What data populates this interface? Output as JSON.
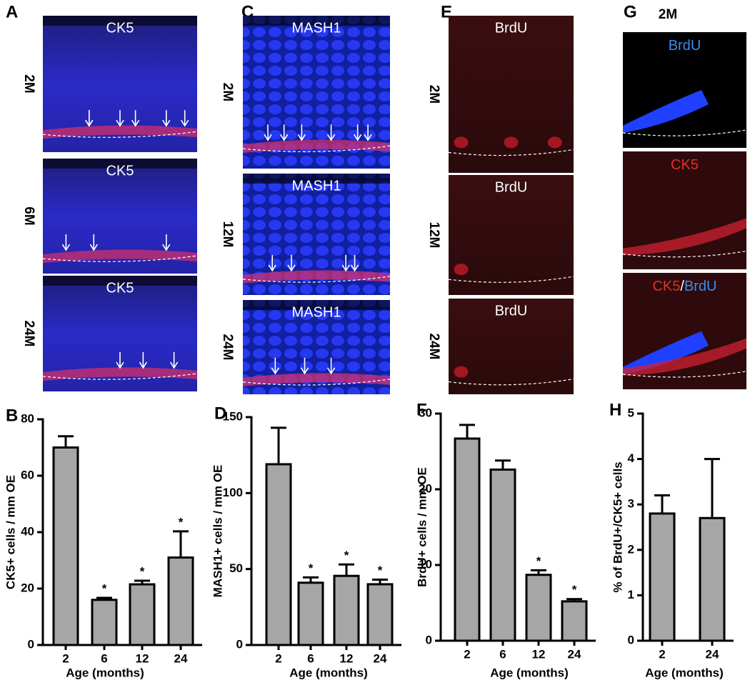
{
  "image_panels": [
    {
      "letter": "A",
      "stain": "CK5",
      "ages": [
        "2M",
        "6M",
        "24M"
      ]
    },
    {
      "letter": "C",
      "stain": "MASH1",
      "ages": [
        "2M",
        "12M",
        "24M"
      ]
    },
    {
      "letter": "E",
      "stain": "BrdU",
      "ages": [
        "2M",
        "12M",
        "24M"
      ]
    },
    {
      "letter": "G",
      "age": "2M",
      "labels": [
        [
          "BrdU"
        ],
        [
          "CK5"
        ],
        [
          "CK5",
          "/",
          "BrdU"
        ]
      ]
    }
  ],
  "chart_data": [
    {
      "type": "bar",
      "panel": "B",
      "x_label": "Age (months)",
      "y_label": "CK5+ cells / mm OE",
      "categories": [
        "2",
        "6",
        "12",
        "24"
      ],
      "values": [
        70,
        16,
        21.5,
        31
      ],
      "errors": [
        4,
        0.7,
        1.3,
        9.3
      ],
      "markers": [
        null,
        "*",
        "*",
        "*"
      ],
      "color": "#a6a6a6",
      "ylim": [
        0,
        80
      ],
      "yticks": [
        0,
        20,
        40,
        60,
        80
      ]
    },
    {
      "type": "bar",
      "panel": "D",
      "x_label": "Age (months)",
      "y_label": "MASH1+ cells / mm OE",
      "categories": [
        "2",
        "6",
        "12",
        "24"
      ],
      "values": [
        119,
        41,
        45.5,
        40
      ],
      "errors": [
        24,
        3.5,
        7.5,
        3
      ],
      "markers": [
        null,
        "*",
        "*",
        "*"
      ],
      "color": "#a6a6a6",
      "ylim": [
        0,
        150
      ],
      "yticks": [
        0,
        50,
        100,
        150
      ]
    },
    {
      "type": "bar",
      "panel": "F",
      "x_label": "Age (months)",
      "y_label": "BrdU+ cells / mm OE",
      "categories": [
        "2",
        "6",
        "12",
        "24"
      ],
      "values": [
        26.7,
        22.6,
        8.7,
        5.2
      ],
      "errors": [
        1.8,
        1.2,
        0.6,
        0.3
      ],
      "markers": [
        null,
        null,
        "*",
        "*"
      ],
      "color": "#a6a6a6",
      "ylim": [
        0,
        30
      ],
      "yticks": [
        0,
        10,
        20,
        30
      ]
    },
    {
      "type": "bar",
      "panel": "H",
      "x_label": "Age (months)",
      "y_label": "% of BrdU+/CK5+ cells",
      "categories": [
        "2",
        "24"
      ],
      "values": [
        2.8,
        2.7
      ],
      "errors": [
        0.4,
        1.3
      ],
      "color": "#a6a6a6",
      "ylim": [
        0,
        5
      ],
      "yticks": [
        0,
        1,
        2,
        3,
        4,
        5
      ]
    }
  ]
}
